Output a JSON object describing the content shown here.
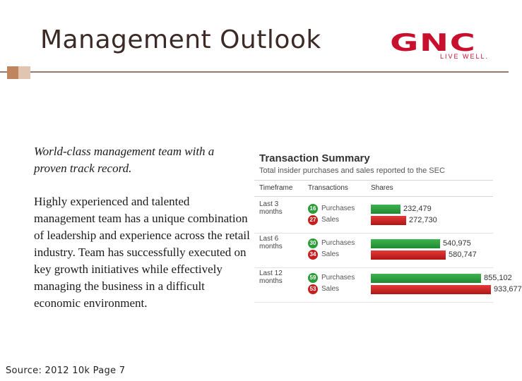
{
  "slide": {
    "title": "Management Outlook",
    "logo": {
      "name": "GNC",
      "tagline": "LIVE WELL.",
      "color": "#c8102e"
    },
    "paragraph1": "World-class management team with a proven track record.",
    "paragraph2": "Highly experienced and talented management team has a unique combination of leadership and experience across the retail industry. Team has successfully executed on key growth initiatives while effectively managing the business in a difficult economic environment.",
    "source": "Source: 2012 10k Page 7"
  },
  "transaction_summary": {
    "title": "Transaction Summary",
    "subtitle": "Total insider purchases and sales reported to the SEC",
    "headers": {
      "timeframe": "Timeframe",
      "transactions": "Transactions",
      "shares": "Shares"
    },
    "max_shares": 933677,
    "rows": [
      {
        "timeframe": "Last 3 months",
        "purchases_count": "16",
        "purchases_label": "Purchases",
        "purchases_shares": 232479,
        "purchases_shares_text": "232,479",
        "sales_count": "27",
        "sales_label": "Sales",
        "sales_shares": 272730,
        "sales_shares_text": "272,730"
      },
      {
        "timeframe": "Last 6 months",
        "purchases_count": "30",
        "purchases_label": "Purchases",
        "purchases_shares": 540975,
        "purchases_shares_text": "540,975",
        "sales_count": "34",
        "sales_label": "Sales",
        "sales_shares": 580747,
        "sales_shares_text": "580,747"
      },
      {
        "timeframe": "Last 12 months",
        "purchases_count": "59",
        "purchases_label": "Purchases",
        "purchases_shares": 855102,
        "purchases_shares_text": "855,102",
        "sales_count": "53",
        "sales_label": "Sales",
        "sales_shares": 933677,
        "sales_shares_text": "933,677"
      }
    ],
    "colors": {
      "purchase": "#2a9d3a",
      "sale": "#c62020"
    }
  }
}
